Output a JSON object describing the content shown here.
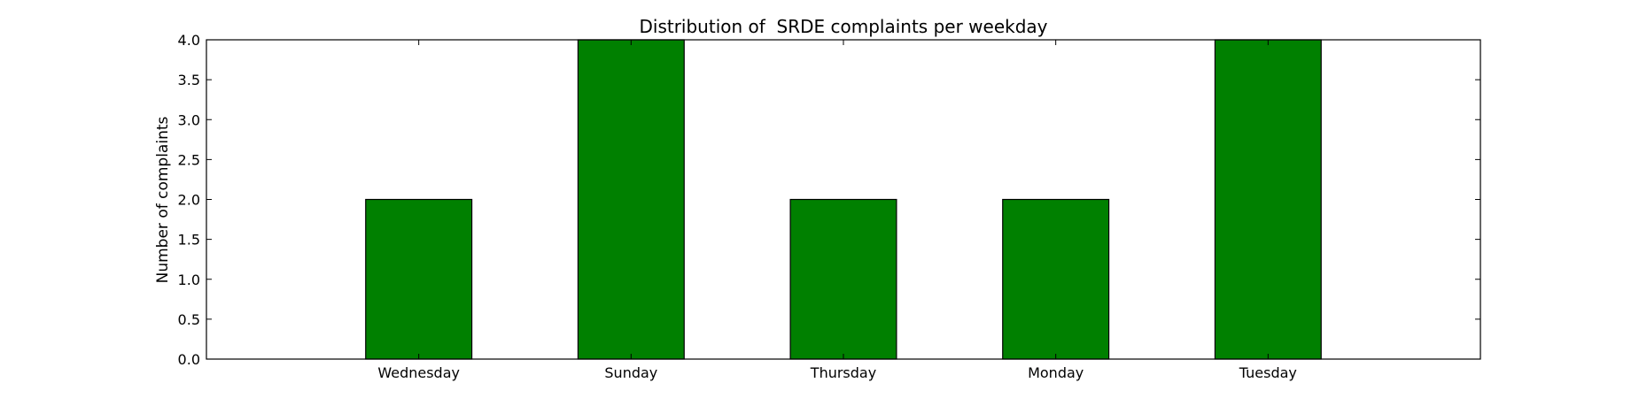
{
  "chart_data": {
    "type": "bar",
    "title": "Distribution of  SRDE complaints per weekday",
    "xlabel": "",
    "ylabel": "Number of complaints",
    "categories": [
      "Wednesday",
      "Sunday",
      "Thursday",
      "Monday",
      "Tuesday"
    ],
    "values": [
      2,
      4,
      2,
      2,
      4
    ],
    "ylim": [
      0,
      4
    ],
    "yticks": [
      "0.0",
      "0.5",
      "1.0",
      "1.5",
      "2.0",
      "2.5",
      "3.0",
      "3.5",
      "4.0"
    ],
    "grid": false,
    "bar_color": "#008000",
    "edge_color": "#000000"
  }
}
